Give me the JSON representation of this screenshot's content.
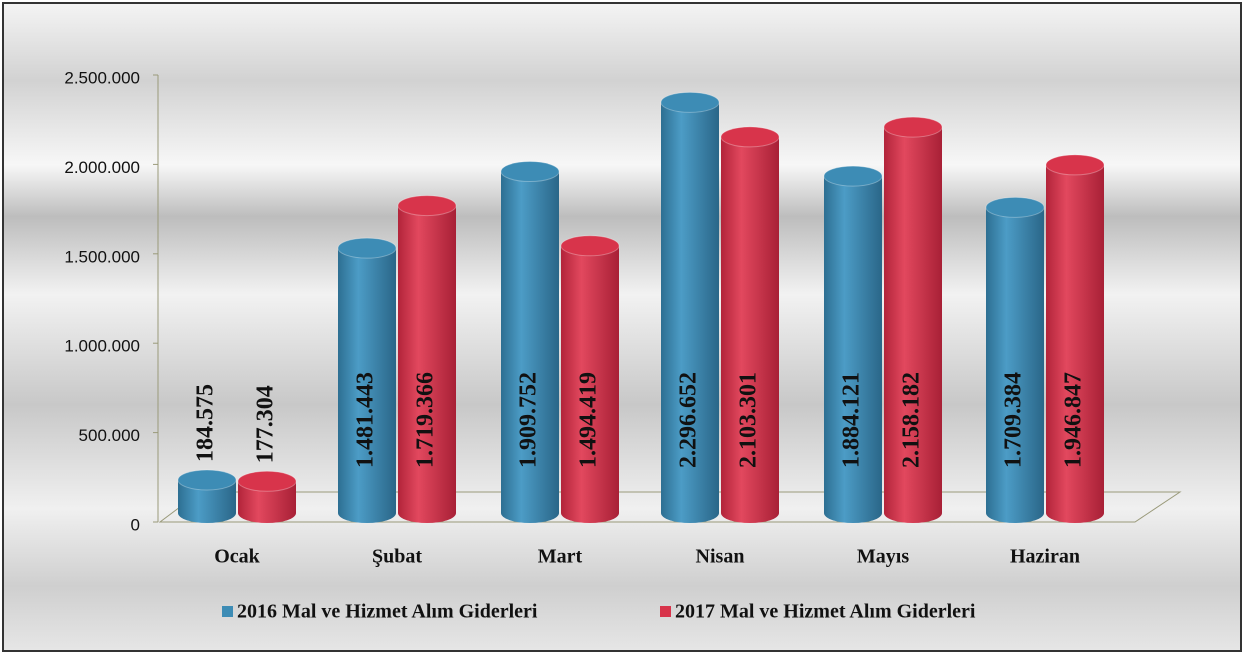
{
  "chart_data": {
    "type": "bar",
    "categories": [
      "Ocak",
      "Şubat",
      "Mart",
      "Nisan",
      "Mayıs",
      "Haziran"
    ],
    "series": [
      {
        "name": "2016 Mal ve Hizmet Alım Giderleri",
        "color": "#3d8cb5",
        "values": [
          184575,
          1481443,
          1909752,
          2296652,
          1884121,
          1709384
        ],
        "value_labels": [
          "184.575",
          "1.481.443",
          "1.909.752",
          "2.296.652",
          "1.884.121",
          "1.709.384"
        ]
      },
      {
        "name": "2017 Mal ve Hizmet Alım Giderleri",
        "color": "#d8344b",
        "values": [
          177304,
          1719366,
          1494419,
          2103301,
          2158182,
          1946847
        ],
        "value_labels": [
          "177.304",
          "1.719.366",
          "1.494.419",
          "2.103.301",
          "2.158.182",
          "1.946.847"
        ]
      }
    ],
    "ylim": [
      0,
      2500000
    ],
    "yticks": [
      0,
      {
        "value": 500000,
        "label": "500.000"
      },
      {
        "value": 1000000,
        "label": "1.000.000"
      },
      {
        "value": 1500000,
        "label": "1.500.000"
      },
      {
        "value": 2000000,
        "label": "2.000.000"
      },
      {
        "value": 2500000,
        "label": "2.500.000"
      }
    ],
    "legend": "bottom"
  }
}
